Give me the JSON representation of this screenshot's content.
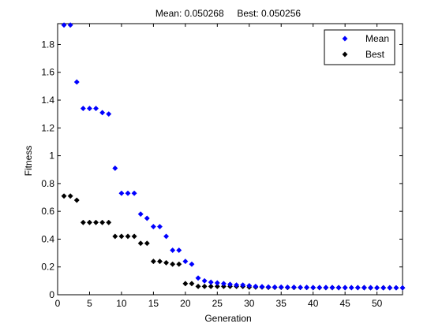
{
  "chart_data": {
    "type": "scatter",
    "title": "Mean: 0.050268     Best: 0.050256",
    "xlabel": "Generation",
    "ylabel": "Fitness",
    "xlim": [
      0,
      54
    ],
    "ylim": [
      0,
      1.95
    ],
    "xticks": [
      0,
      5,
      10,
      15,
      20,
      25,
      30,
      35,
      40,
      45,
      50
    ],
    "yticks": [
      0,
      0.2,
      0.4,
      0.6,
      0.8,
      1,
      1.2,
      1.4,
      1.6,
      1.8
    ],
    "xtick_labels": [
      "0",
      "5",
      "10",
      "15",
      "20",
      "25",
      "30",
      "35",
      "40",
      "45",
      "50"
    ],
    "ytick_labels": [
      "0",
      "0.2",
      "0.4",
      "0.6",
      "0.8",
      "1",
      "1.2",
      "1.4",
      "1.6",
      "1.8"
    ],
    "grid": false,
    "legend_position": "top-right",
    "series": [
      {
        "name": "Mean",
        "color": "#0000ff",
        "marker": "diamond",
        "x": [
          1,
          2,
          3,
          4,
          5,
          6,
          7,
          8,
          9,
          10,
          11,
          12,
          13,
          14,
          15,
          16,
          17,
          18,
          19,
          20,
          21,
          22,
          23,
          24,
          25,
          26,
          27,
          28,
          29,
          30,
          31,
          32,
          33,
          34,
          35,
          36,
          37,
          38,
          39,
          40,
          41,
          42,
          43,
          44,
          45,
          46,
          47,
          48,
          49,
          50,
          51,
          52,
          53,
          54
        ],
        "y": [
          1.94,
          1.94,
          1.53,
          1.34,
          1.34,
          1.34,
          1.31,
          1.3,
          0.91,
          0.73,
          0.73,
          0.73,
          0.58,
          0.55,
          0.49,
          0.49,
          0.42,
          0.32,
          0.32,
          0.24,
          0.22,
          0.12,
          0.1,
          0.09,
          0.085,
          0.08,
          0.075,
          0.07,
          0.07,
          0.065,
          0.06,
          0.058,
          0.056,
          0.055,
          0.055,
          0.054,
          0.054,
          0.053,
          0.053,
          0.052,
          0.052,
          0.052,
          0.052,
          0.051,
          0.051,
          0.051,
          0.051,
          0.051,
          0.051,
          0.05,
          0.05,
          0.05,
          0.05,
          0.05
        ]
      },
      {
        "name": "Best",
        "color": "#000000",
        "marker": "diamond",
        "x": [
          1,
          2,
          3,
          4,
          5,
          6,
          7,
          8,
          9,
          10,
          11,
          12,
          13,
          14,
          15,
          16,
          17,
          18,
          19,
          20,
          21,
          22,
          23,
          24,
          25,
          26,
          27,
          28,
          29,
          30,
          31,
          32,
          33,
          34,
          35,
          36,
          37,
          38,
          39,
          40,
          41,
          42,
          43,
          44,
          45,
          46,
          47,
          48,
          49,
          50,
          51,
          52,
          53,
          54
        ],
        "y": [
          0.71,
          0.71,
          0.68,
          0.52,
          0.52,
          0.52,
          0.52,
          0.52,
          0.42,
          0.42,
          0.42,
          0.42,
          0.37,
          0.37,
          0.24,
          0.24,
          0.23,
          0.22,
          0.22,
          0.08,
          0.08,
          0.06,
          0.06,
          0.06,
          0.06,
          0.06,
          0.06,
          0.06,
          0.06,
          0.055,
          0.055,
          0.055,
          0.053,
          0.053,
          0.053,
          0.052,
          0.052,
          0.052,
          0.052,
          0.051,
          0.051,
          0.051,
          0.051,
          0.051,
          0.051,
          0.051,
          0.051,
          0.051,
          0.05,
          0.05,
          0.05,
          0.05,
          0.05,
          0.05
        ]
      }
    ]
  }
}
